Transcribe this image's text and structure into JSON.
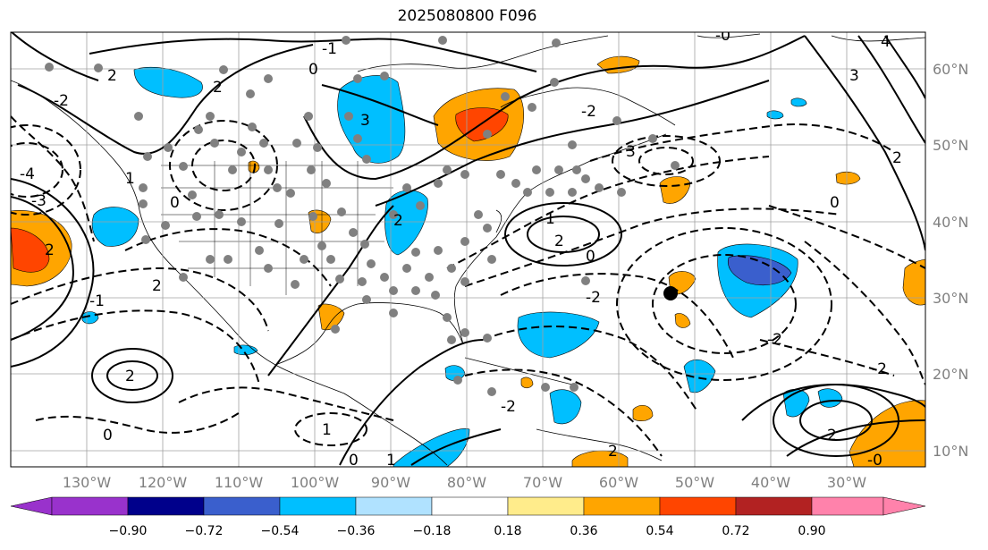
{
  "title": "2025080800 F096",
  "longitude_labels": [
    "130°W",
    "120°W",
    "110°W",
    "100°W",
    "90°W",
    "80°W",
    "70°W",
    "60°W",
    "50°W",
    "40°W",
    "30°W"
  ],
  "latitude_labels": [
    "60°N",
    "50°N",
    "40°N",
    "30°N",
    "20°N",
    "10°N"
  ],
  "colorbar": {
    "tick_labels": [
      "−0.90",
      "−0.72",
      "−0.54",
      "−0.36",
      "−0.18",
      "0.18",
      "0.36",
      "0.54",
      "0.72",
      "0.90"
    ],
    "colors": [
      "#9932cc",
      "#00008b",
      "#3a5fcd",
      "#00bfff",
      "#b0e2ff",
      "#ffffff",
      "#ffec8b",
      "#ffa500",
      "#ff4500",
      "#b22222",
      "#ff82ab"
    ]
  },
  "contour_labels": [
    "2",
    "0",
    "-2",
    "-4",
    "-3",
    "2",
    "-1",
    "0",
    "1",
    "2",
    "3",
    "4",
    "-0",
    "2",
    "0",
    "1",
    "2",
    "-1",
    "-2",
    "1",
    "2",
    "3",
    "0",
    "-2",
    "3",
    "2",
    "-2",
    "-2",
    "0",
    "2",
    "1",
    "2",
    "-2",
    "-0",
    "0",
    "2"
  ],
  "marker_label": ""
}
